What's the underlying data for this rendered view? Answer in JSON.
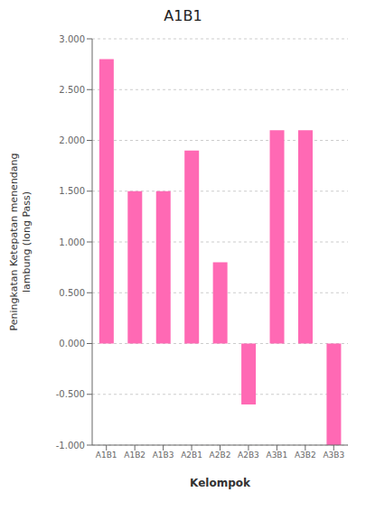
{
  "chart_data": {
    "type": "bar",
    "title": "A1B1",
    "categories": [
      "A1B1",
      "A1B2",
      "A1B3",
      "A2B1",
      "A2B2",
      "A2B3",
      "A3B1",
      "A3B2",
      "A3B3"
    ],
    "values": [
      2.8,
      1.5,
      1.5,
      1.9,
      0.8,
      -0.6,
      2.1,
      2.1,
      -1.0
    ],
    "color": "#FF69B4",
    "xlabel": "Kelompok",
    "ylabel": "Peningkatan Ketepatan menendang\nlambung (long Pass)",
    "ylim": [
      -1.0,
      3.0
    ],
    "yticks": [
      {
        "value": -1.0,
        "label": "-1.000"
      },
      {
        "value": -0.5,
        "label": "-0.500"
      },
      {
        "value": 0.0,
        "label": "0.000"
      },
      {
        "value": 0.5,
        "label": "0.500"
      },
      {
        "value": 1.0,
        "label": "1.000"
      },
      {
        "value": 1.5,
        "label": "1.500"
      },
      {
        "value": 2.0,
        "label": "2.000"
      },
      {
        "value": 2.5,
        "label": "2.500"
      },
      {
        "value": 3.0,
        "label": "3.000"
      }
    ],
    "grid": true
  }
}
